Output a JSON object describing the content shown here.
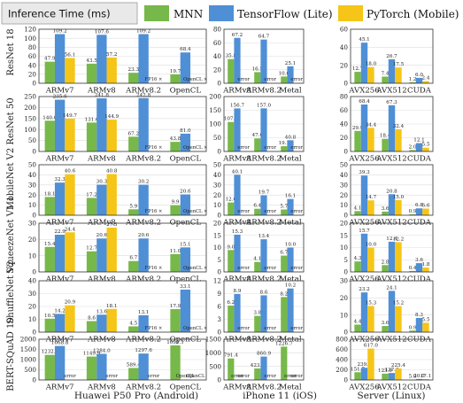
{
  "title": "Inference Time (ms)",
  "colors": {
    "MNN": "#77b84a",
    "TensorFlow (Lite)": "#4f8fd6",
    "PyTorch (Mobile)": "#f5c518"
  },
  "legend": [
    {
      "name": "MNN",
      "color": "#77b84a"
    },
    {
      "name": "TensorFlow (Lite)",
      "color": "#4f8fd6"
    },
    {
      "name": "PyTorch (Mobile)",
      "color": "#f5c518"
    }
  ],
  "columns": [
    "Huawei P50 Pro (Android)",
    "iPhone 11 (iOS)",
    "Server (Linux)"
  ],
  "rows": [
    "ResNet 18",
    "ResNet 50",
    "MobileNet V2",
    "SqueezeNet V1.1",
    "ShuffleNet V2",
    "BERT-SQuAD 10"
  ],
  "chart_data": [
    {
      "type": "bar",
      "model": "ResNet 18",
      "platform": "Huawei P50 Pro (Android)",
      "categories": [
        "ARMv7",
        "ARMv8",
        "ARMv8.2",
        "OpenCL"
      ],
      "ylim": [
        0,
        120
      ],
      "yticks": [
        0,
        20,
        40,
        60,
        80,
        100,
        120
      ],
      "series": [
        {
          "name": "MNN",
          "values": [
            47.9,
            43.5,
            23.3,
            19.7
          ]
        },
        {
          "name": "TensorFlow (Lite)",
          "values": [
            109.2,
            107.6,
            109.2,
            68.4
          ]
        },
        {
          "name": "PyTorch (Mobile)",
          "values": [
            56.1,
            57.2,
            null,
            null
          ]
        }
      ],
      "annotations": [
        {
          "category": "ARMv8.2",
          "series": "PyTorch (Mobile)",
          "text": "FP16 ×"
        },
        {
          "category": "OpenCL",
          "series": "PyTorch (Mobile)",
          "text": "OpenCL ×"
        }
      ]
    },
    {
      "type": "bar",
      "model": "ResNet 18",
      "platform": "iPhone 11 (iOS)",
      "categories": [
        "ARMv8",
        "ARMv8.2",
        "Metal"
      ],
      "ylim": [
        0,
        80
      ],
      "yticks": [
        0,
        20,
        40,
        60,
        80
      ],
      "series": [
        {
          "name": "MNN",
          "values": [
            35.8,
            16.5,
            10.0
          ]
        },
        {
          "name": "TensorFlow (Lite)",
          "values": [
            67.2,
            64.7,
            25.1
          ]
        },
        {
          "name": "PyTorch (Mobile)",
          "values": [
            null,
            null,
            null
          ]
        }
      ],
      "annotations": [
        {
          "category": "ARMv8",
          "series": "PyTorch (Mobile)",
          "text": "error"
        },
        {
          "category": "ARMv8.2",
          "series": "PyTorch (Mobile)",
          "text": "error"
        },
        {
          "category": "Metal",
          "series": "PyTorch (Mobile)",
          "text": "error"
        }
      ]
    },
    {
      "type": "bar",
      "model": "ResNet 18",
      "platform": "Server (Linux)",
      "categories": [
        "AVX256",
        "AVX512",
        "CUDA"
      ],
      "ylim": [
        0,
        60
      ],
      "yticks": [
        0,
        20,
        40,
        60
      ],
      "series": [
        {
          "name": "MNN",
          "values": [
            12.7,
            7.4,
            1.2
          ]
        },
        {
          "name": "TensorFlow (Lite)",
          "values": [
            45.1,
            26.7,
            6.0
          ]
        },
        {
          "name": "PyTorch (Mobile)",
          "values": [
            18.0,
            17.5,
            2.4
          ]
        }
      ]
    },
    {
      "type": "bar",
      "model": "ResNet 50",
      "platform": "Huawei P50 Pro (Android)",
      "categories": [
        "ARMv7",
        "ARMv8",
        "ARMv8.2",
        "OpenCL"
      ],
      "ylim": [
        0,
        250
      ],
      "yticks": [
        0,
        50,
        100,
        150,
        200,
        250
      ],
      "series": [
        {
          "name": "MNN",
          "values": [
            140.0,
            131.6,
            67.2,
            43.8
          ]
        },
        {
          "name": "TensorFlow (Lite)",
          "values": [
            235.6,
            241.8,
            242.8,
            81.0
          ]
        },
        {
          "name": "PyTorch (Mobile)",
          "values": [
            149.7,
            144.9,
            null,
            null
          ]
        }
      ],
      "annotations": [
        {
          "category": "ARMv8.2",
          "series": "PyTorch (Mobile)",
          "text": "FP16 ×"
        },
        {
          "category": "OpenCL",
          "series": "PyTorch (Mobile)",
          "text": "OpenCL ×"
        }
      ]
    },
    {
      "type": "bar",
      "model": "ResNet 50",
      "platform": "iPhone 11 (iOS)",
      "categories": [
        "ARMv8",
        "ARMv8.2",
        "Metal"
      ],
      "ylim": [
        0,
        200
      ],
      "yticks": [
        0,
        50,
        100,
        150,
        200
      ],
      "series": [
        {
          "name": "MNN",
          "values": [
            107.3,
            47.6,
            19.1
          ]
        },
        {
          "name": "TensorFlow (Lite)",
          "values": [
            156.7,
            157.0,
            40.8
          ]
        },
        {
          "name": "PyTorch (Mobile)",
          "values": [
            null,
            null,
            null
          ]
        }
      ],
      "annotations": [
        {
          "category": "ARMv8",
          "series": "PyTorch (Mobile)",
          "text": "error"
        },
        {
          "category": "ARMv8.2",
          "series": "PyTorch (Mobile)",
          "text": "error"
        },
        {
          "category": "Metal",
          "series": "PyTorch (Mobile)",
          "text": "error"
        }
      ]
    },
    {
      "type": "bar",
      "model": "ResNet 50",
      "platform": "Server (Linux)",
      "categories": [
        "AVX256",
        "AVX512",
        "CUDA"
      ],
      "ylim": [
        0,
        80
      ],
      "yticks": [
        0,
        20,
        40,
        60,
        80
      ],
      "series": [
        {
          "name": "MNN",
          "values": [
            29.9,
            18.4,
            2.0
          ]
        },
        {
          "name": "TensorFlow (Lite)",
          "values": [
            68.4,
            67.3,
            12.1
          ]
        },
        {
          "name": "PyTorch (Mobile)",
          "values": [
            34.4,
            32.4,
            5.5
          ]
        }
      ]
    },
    {
      "type": "bar",
      "model": "MobileNet V2",
      "platform": "Huawei P50 Pro (Android)",
      "categories": [
        "ARMv7",
        "ARMv8",
        "ARMv8.2",
        "OpenCL"
      ],
      "ylim": [
        0,
        50
      ],
      "yticks": [
        0,
        10,
        20,
        30,
        40,
        50
      ],
      "series": [
        {
          "name": "MNN",
          "values": [
            18.1,
            17.2,
            5.9,
            9.9
          ]
        },
        {
          "name": "TensorFlow (Lite)",
          "values": [
            32.3,
            30.3,
            30.2,
            20.6
          ]
        },
        {
          "name": "PyTorch (Mobile)",
          "values": [
            40.6,
            40.8,
            null,
            null
          ]
        }
      ],
      "annotations": [
        {
          "category": "ARMv8.2",
          "series": "PyTorch (Mobile)",
          "text": "FP16 ×"
        },
        {
          "category": "OpenCL",
          "series": "PyTorch (Mobile)",
          "text": "OpenCL ×"
        }
      ]
    },
    {
      "type": "bar",
      "model": "MobileNet V2",
      "platform": "iPhone 11 (iOS)",
      "categories": [
        "ARMv8",
        "ARMv8.2",
        "Metal"
      ],
      "ylim": [
        0,
        50
      ],
      "yticks": [
        0,
        10,
        20,
        30,
        40,
        50
      ],
      "series": [
        {
          "name": "MNN",
          "values": [
            12.6,
            6.4,
            5.7
          ]
        },
        {
          "name": "TensorFlow (Lite)",
          "values": [
            40.1,
            19.7,
            16.1
          ]
        },
        {
          "name": "PyTorch (Mobile)",
          "values": [
            null,
            null,
            null
          ]
        }
      ],
      "annotations": [
        {
          "category": "ARMv8",
          "series": "PyTorch (Mobile)",
          "text": "error"
        },
        {
          "category": "ARMv8.2",
          "series": "PyTorch (Mobile)",
          "text": "error"
        },
        {
          "category": "Metal",
          "series": "PyTorch (Mobile)",
          "text": "error"
        }
      ]
    },
    {
      "type": "bar",
      "model": "MobileNet V2",
      "platform": "Server (Linux)",
      "categories": [
        "AVX256",
        "AVX512",
        "CUDA"
      ],
      "ylim": [
        0,
        50
      ],
      "yticks": [
        0,
        10,
        20,
        30,
        40,
        50
      ],
      "series": [
        {
          "name": "MNN",
          "values": [
            4.1,
            3.6,
            0.9
          ]
        },
        {
          "name": "TensorFlow (Lite)",
          "values": [
            39.3,
            20.8,
            6.8
          ]
        },
        {
          "name": "PyTorch (Mobile)",
          "values": [
            14.7,
            15.0,
            6.6
          ]
        }
      ]
    },
    {
      "type": "bar",
      "model": "SqueezeNet V1.1",
      "platform": "Huawei P50 Pro (Android)",
      "categories": [
        "ARMv7",
        "ARMv8",
        "ARMv8.2",
        "OpenCL"
      ],
      "ylim": [
        0,
        30
      ],
      "yticks": [
        0,
        10,
        20,
        30
      ],
      "series": [
        {
          "name": "MNN",
          "values": [
            15.4,
            12.7,
            6.7,
            11.0
          ]
        },
        {
          "name": "TensorFlow (Lite)",
          "values": [
            22.9,
            20.6,
            20.6,
            15.1
          ]
        },
        {
          "name": "PyTorch (Mobile)",
          "values": [
            24.4,
            27.3,
            null,
            null
          ]
        }
      ],
      "annotations": [
        {
          "category": "ARMv8.2",
          "series": "PyTorch (Mobile)",
          "text": "FP16 ×"
        },
        {
          "category": "OpenCL",
          "series": "PyTorch (Mobile)",
          "text": "OpenCL ×"
        }
      ]
    },
    {
      "type": "bar",
      "model": "SqueezeNet V1.1",
      "platform": "iPhone 11 (iOS)",
      "categories": [
        "ARMv8",
        "ARMv8.2",
        "Metal"
      ],
      "ylim": [
        0,
        20
      ],
      "yticks": [
        0,
        5,
        10,
        15,
        20
      ],
      "series": [
        {
          "name": "MNN",
          "values": [
            9.0,
            4.1,
            6.7
          ]
        },
        {
          "name": "TensorFlow (Lite)",
          "values": [
            15.3,
            13.4,
            10.0
          ]
        },
        {
          "name": "PyTorch (Mobile)",
          "values": [
            null,
            null,
            null
          ]
        }
      ],
      "annotations": [
        {
          "category": "ARMv8",
          "series": "PyTorch (Mobile)",
          "text": "error"
        },
        {
          "category": "ARMv8.2",
          "series": "PyTorch (Mobile)",
          "text": "error"
        },
        {
          "category": "Metal",
          "series": "PyTorch (Mobile)",
          "text": "error"
        }
      ]
    },
    {
      "type": "bar",
      "model": "SqueezeNet V1.1",
      "platform": "Server (Linux)",
      "categories": [
        "AVX256",
        "AVX512",
        "CUDA"
      ],
      "ylim": [
        0,
        20
      ],
      "yticks": [
        0,
        5,
        10,
        15,
        20
      ],
      "series": [
        {
          "name": "MNN",
          "values": [
            4.3,
            2.8,
            0.4
          ]
        },
        {
          "name": "TensorFlow (Lite)",
          "values": [
            15.7,
            12.4,
            3.6
          ]
        },
        {
          "name": "PyTorch (Mobile)",
          "values": [
            10.0,
            12.2,
            1.8
          ]
        }
      ]
    },
    {
      "type": "bar",
      "model": "ShuffleNet V2",
      "platform": "Huawei P50 Pro (Android)",
      "categories": [
        "ARMv7",
        "ARMv8",
        "ARMv8.2",
        "OpenCL"
      ],
      "ylim": [
        0,
        40
      ],
      "yticks": [
        0,
        10,
        20,
        30,
        40
      ],
      "series": [
        {
          "name": "MNN",
          "values": [
            10.5,
            8.6,
            4.5,
            17.9
          ]
        },
        {
          "name": "TensorFlow (Lite)",
          "values": [
            14.2,
            13.6,
            13.1,
            33.1
          ]
        },
        {
          "name": "PyTorch (Mobile)",
          "values": [
            20.9,
            18.1,
            null,
            null
          ]
        }
      ],
      "annotations": [
        {
          "category": "ARMv8.2",
          "series": "PyTorch (Mobile)",
          "text": "FP16 ×"
        },
        {
          "category": "OpenCL",
          "series": "PyTorch (Mobile)",
          "text": "OpenCL ×"
        }
      ]
    },
    {
      "type": "bar",
      "model": "ShuffleNet V2",
      "platform": "iPhone 11 (iOS)",
      "categories": [
        "ARMv8",
        "ARMv8.2",
        "Metal"
      ],
      "ylim": [
        0,
        12
      ],
      "yticks": [
        0,
        3,
        6,
        9,
        12
      ],
      "series": [
        {
          "name": "MNN",
          "values": [
            6.2,
            3.8,
            8.2
          ]
        },
        {
          "name": "TensorFlow (Lite)",
          "values": [
            8.9,
            8.6,
            10.2
          ]
        },
        {
          "name": "PyTorch (Mobile)",
          "values": [
            null,
            null,
            null
          ]
        }
      ],
      "annotations": [
        {
          "category": "ARMv8",
          "series": "PyTorch (Mobile)",
          "text": "error"
        },
        {
          "category": "ARMv8.2",
          "series": "PyTorch (Mobile)",
          "text": "error"
        },
        {
          "category": "Metal",
          "series": "PyTorch (Mobile)",
          "text": "error"
        }
      ]
    },
    {
      "type": "bar",
      "model": "ShuffleNet V2",
      "platform": "Server (Linux)",
      "categories": [
        "AVX256",
        "AVX512",
        "CUDA"
      ],
      "ylim": [
        0,
        30
      ],
      "yticks": [
        0,
        10,
        20,
        30
      ],
      "series": [
        {
          "name": "MNN",
          "values": [
            4.4,
            3.6,
            0.9
          ]
        },
        {
          "name": "TensorFlow (Lite)",
          "values": [
            23.2,
            24.1,
            8.3
          ]
        },
        {
          "name": "PyTorch (Mobile)",
          "values": [
            15.3,
            15.2,
            5.5
          ]
        }
      ]
    },
    {
      "type": "bar",
      "model": "BERT-SQuAD 10",
      "platform": "Huawei P50 Pro (Android)",
      "categories": [
        "ARMv7",
        "ARMv8",
        "ARMv8.2",
        "OpenCL"
      ],
      "ylim": [
        0,
        2000
      ],
      "yticks": [
        0,
        500,
        1000,
        1500,
        2000
      ],
      "series": [
        {
          "name": "MNN",
          "values": [
            1232.0,
            1149.9,
            589.4,
            1699.1
          ]
        },
        {
          "name": "TensorFlow (Lite)",
          "values": [
            1668.8,
            1284.0,
            1297.6,
            null
          ]
        },
        {
          "name": "PyTorch (Mobile)",
          "values": [
            null,
            null,
            null,
            null
          ]
        }
      ],
      "annotations": [
        {
          "category": "ARMv7",
          "series": "PyTorch (Mobile)",
          "text": "error"
        },
        {
          "category": "ARMv8",
          "series": "PyTorch (Mobile)",
          "text": "error"
        },
        {
          "category": "ARMv8.2",
          "series": "PyTorch (Mobile)",
          "text": "error"
        },
        {
          "category": "OpenCL",
          "series": "TensorFlow (Lite)",
          "text": "OpenCL"
        },
        {
          "category": "OpenCL",
          "series": "PyTorch (Mobile)",
          "text": "OpenCL"
        }
      ]
    },
    {
      "type": "bar",
      "model": "BERT-SQuAD 10",
      "platform": "iPhone 11 (iOS)",
      "categories": [
        "ARMv8",
        "ARMv8.2",
        "Metal"
      ],
      "ylim": [
        0,
        1500
      ],
      "yticks": [
        0,
        500,
        1000,
        1500
      ],
      "series": [
        {
          "name": "MNN",
          "values": [
            791.4,
            423.2,
            1226.7
          ]
        },
        {
          "name": "TensorFlow (Lite)",
          "values": [
            null,
            860.9,
            null
          ]
        },
        {
          "name": "PyTorch (Mobile)",
          "values": [
            null,
            null,
            null
          ]
        }
      ],
      "annotations": [
        {
          "category": "ARMv8",
          "series": "TensorFlow (Lite)",
          "text": "error"
        },
        {
          "category": "ARMv8",
          "series": "PyTorch (Mobile)",
          "text": "error"
        },
        {
          "category": "ARMv8.2",
          "series": "PyTorch (Mobile)",
          "text": "error"
        },
        {
          "category": "Metal",
          "series": "TensorFlow (Lite)",
          "text": "error"
        },
        {
          "category": "Metal",
          "series": "PyTorch (Mobile)",
          "text": "error"
        }
      ]
    },
    {
      "type": "bar",
      "model": "BERT-SQuAD 10",
      "platform": "Server (Linux)",
      "categories": [
        "AVX256",
        "AVX512",
        "CUDA"
      ],
      "ylim": [
        0,
        800
      ],
      "yticks": [
        0,
        200,
        400,
        600,
        800
      ],
      "series": [
        {
          "name": "MNN",
          "values": [
            151.7,
            123.9,
            5.0
          ]
        },
        {
          "name": "TensorFlow (Lite)",
          "values": [
            239.2,
            137.0,
            20.0
          ]
        },
        {
          "name": "PyTorch (Mobile)",
          "values": [
            617.0,
            225.4,
            17.1
          ]
        }
      ]
    }
  ]
}
